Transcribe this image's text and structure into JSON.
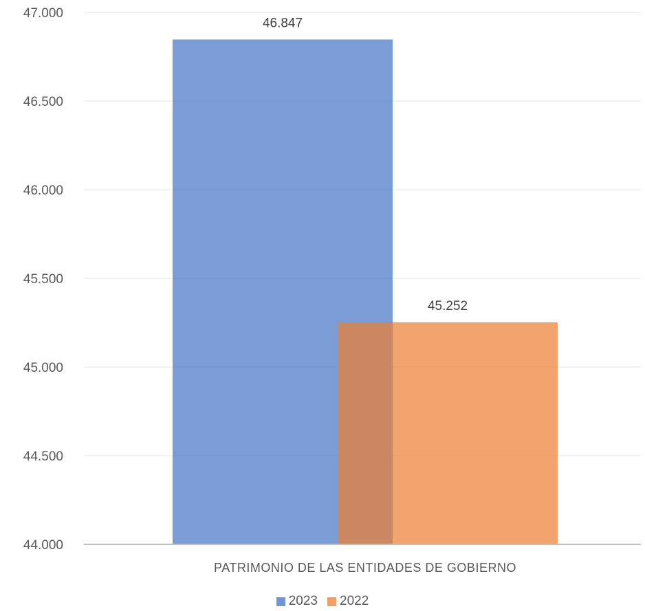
{
  "chart_data": {
    "type": "bar",
    "categories": [
      "PATRIMONIO DE LAS ENTIDADES DE GOBIERNO"
    ],
    "series": [
      {
        "name": "2023",
        "values": [
          46847
        ],
        "label": "46.847",
        "color": "#4472C4"
      },
      {
        "name": "2022",
        "values": [
          45252
        ],
        "label": "45.252",
        "color": "#ED7D31"
      }
    ],
    "ylim": [
      44000,
      47000
    ],
    "yticks": [
      44000,
      44500,
      45000,
      45500,
      46000,
      46500,
      47000
    ],
    "ytick_labels": [
      "44.000",
      "44.500",
      "45.000",
      "45.500",
      "46.000",
      "46.500",
      "47.000"
    ],
    "grid": true,
    "legend_position": "bottom",
    "bar_overlap": true
  }
}
